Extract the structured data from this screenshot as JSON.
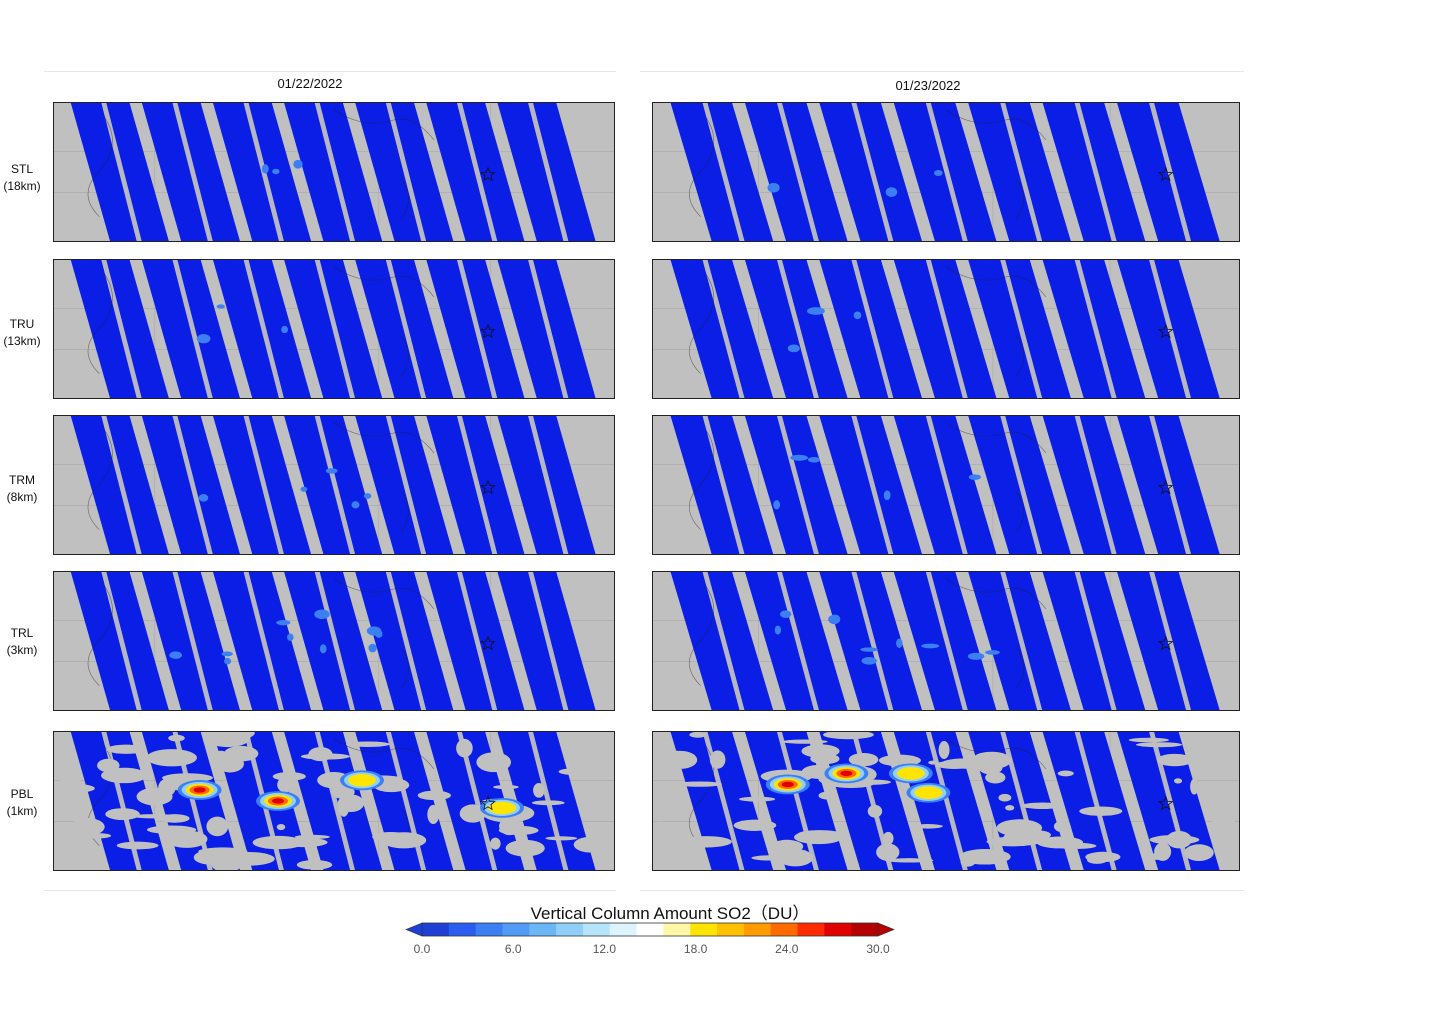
{
  "dates": [
    "01/22/2022",
    "01/23/2022"
  ],
  "levels": [
    {
      "name": "STL",
      "alt": "(18km)"
    },
    {
      "name": "TRU",
      "alt": "(13km)"
    },
    {
      "name": "TRM",
      "alt": "(8km)"
    },
    {
      "name": "TRL",
      "alt": "(3km)"
    },
    {
      "name": "PBL",
      "alt": "(1km)"
    }
  ],
  "colorbar": {
    "title": "Vertical Column Amount SO2（DU）",
    "min": 0,
    "max": 30,
    "tick_labels": [
      "0.0",
      "6.0",
      "12.0",
      "18.0",
      "24.0",
      "30.0"
    ],
    "colors": [
      "#1d3fd6",
      "#2a5ef0",
      "#3b7ff2",
      "#4f9bf5",
      "#6bb6f7",
      "#8fcff9",
      "#b6e4fb",
      "#ddf4fd",
      "#ffffff",
      "#fff7a8",
      "#ffe400",
      "#ffc000",
      "#ff9a00",
      "#ff6a00",
      "#ff2a00",
      "#e00000",
      "#b40000"
    ],
    "under_color": "#1d3fd6",
    "over_color": "#b40000"
  },
  "map_colors": {
    "background": "#c0c0c0",
    "swath": "#0a1ee6"
  }
}
